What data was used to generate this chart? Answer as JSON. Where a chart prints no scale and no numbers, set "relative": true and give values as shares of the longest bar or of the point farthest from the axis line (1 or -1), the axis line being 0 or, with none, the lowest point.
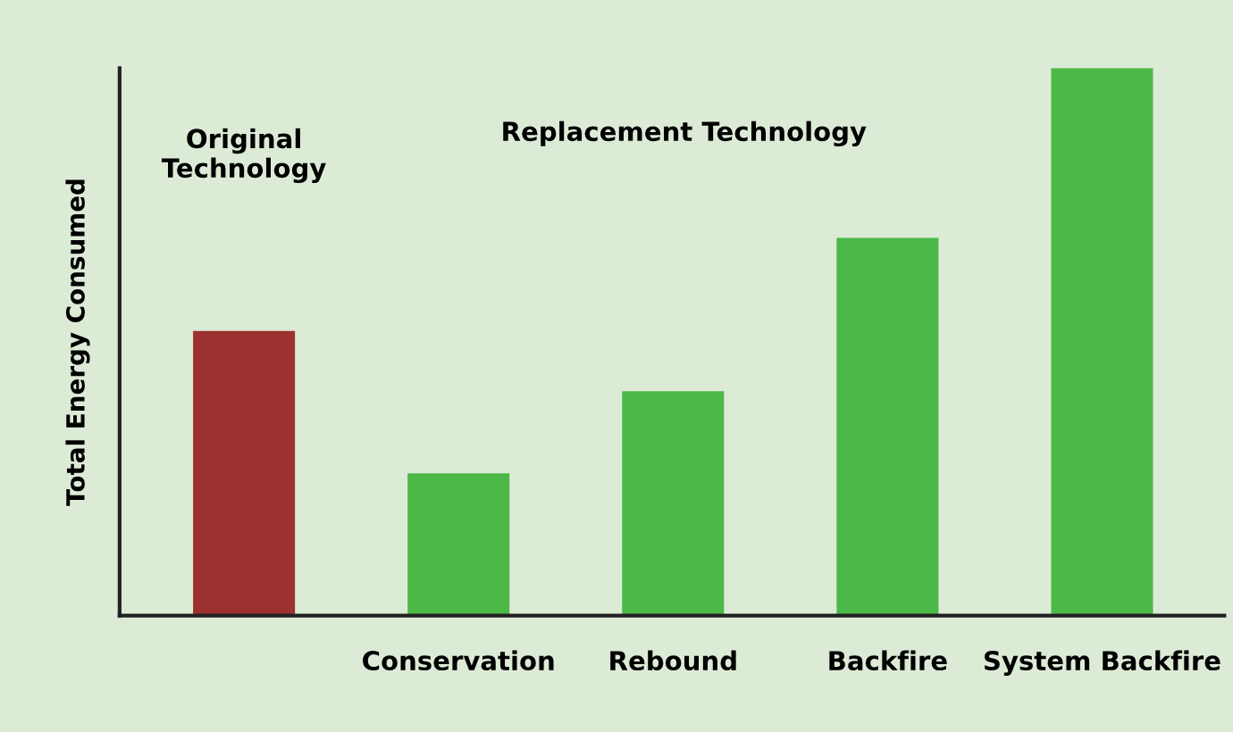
{
  "chart_data": {
    "type": "bar",
    "relative": true,
    "ylabel": "Total Energy Consumed",
    "categories": [
      null,
      "Conservation",
      "Rebound",
      "Backfire",
      "System Backfire"
    ],
    "values": [
      0.52,
      0.26,
      0.41,
      0.69,
      1
    ],
    "colors": [
      "#9b3230",
      "#4cb848",
      "#4cb848",
      "#4cb848",
      "#4cb848"
    ],
    "annotations": [
      "Original\nTechnology",
      "Replacement Technology"
    ],
    "grid": false,
    "legend": false
  }
}
